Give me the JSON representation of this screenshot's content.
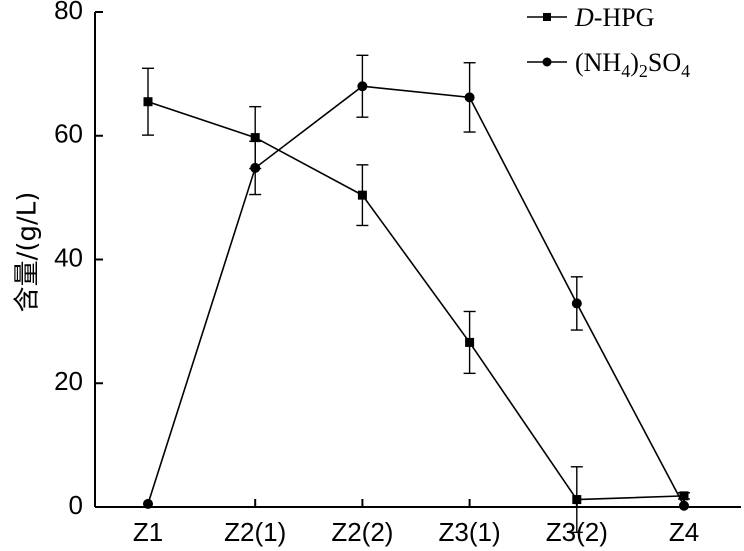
{
  "chart_data": {
    "type": "line",
    "title": "",
    "xlabel": "",
    "ylabel": "含量/(g/L)",
    "categories": [
      "Z1",
      "Z2(1)",
      "Z2(2)",
      "Z3(1)",
      "Z3(2)",
      "Z4"
    ],
    "ylim": [
      0,
      80
    ],
    "yticks": [
      "0",
      "20",
      "40",
      "60",
      "80"
    ],
    "grid": false,
    "legend_position": "top-right",
    "series": [
      {
        "name_prefix": "D",
        "name_suffix": "-HPG",
        "marker": "square",
        "values": [
          65.5,
          59.7,
          50.4,
          26.6,
          1.2,
          1.8
        ],
        "errors": [
          5.4,
          5.0,
          4.9,
          5.0,
          5.3,
          0.5
        ]
      },
      {
        "name_parts": [
          "(NH",
          "4",
          ")",
          "2",
          "SO",
          "4"
        ],
        "marker": "circle",
        "values": [
          0.5,
          54.8,
          68.0,
          66.2,
          32.9,
          0.2
        ],
        "errors": [
          0,
          4.3,
          5.0,
          5.6,
          4.3,
          0
        ]
      }
    ]
  }
}
